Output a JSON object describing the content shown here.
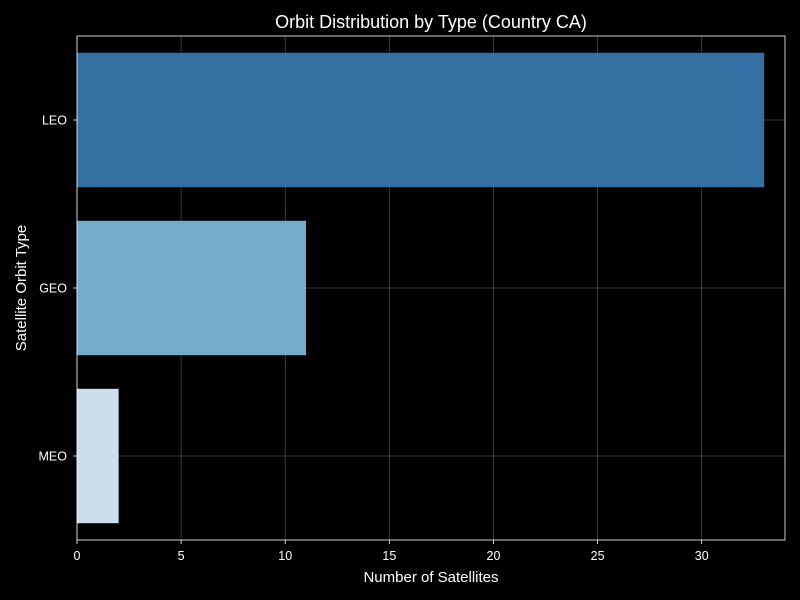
{
  "chart_data": {
    "type": "bar",
    "orientation": "horizontal",
    "title": "Orbit Distribution by Type (Country CA)",
    "xlabel": "Number of Satellites",
    "ylabel": "Satellite Orbit Type",
    "categories": [
      "LEO",
      "GEO",
      "MEO"
    ],
    "values": [
      33,
      11,
      2
    ],
    "colors": [
      "#3470a3",
      "#76aacb",
      "#cddeee"
    ],
    "xlim": [
      0,
      34
    ],
    "xticks": [
      0,
      5,
      10,
      15,
      20,
      25,
      30
    ],
    "grid": true,
    "background": "#000000",
    "text_color": "#ffffff"
  }
}
